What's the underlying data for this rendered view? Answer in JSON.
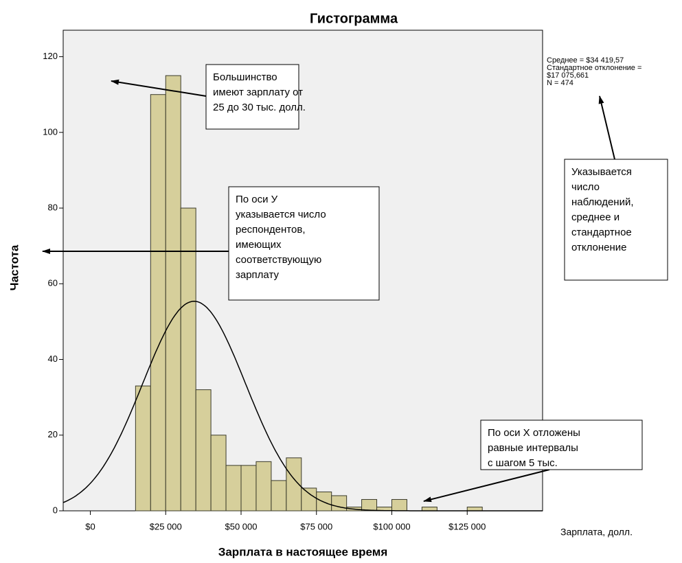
{
  "chart_data": {
    "type": "histogram",
    "title": "Гистограмма",
    "x_label": "Зарплата в настоящее время",
    "y_label": "Частота",
    "x_note": "Зарплата, долл.",
    "bins": [
      15000,
      20000,
      25000,
      30000,
      35000,
      40000,
      45000,
      50000,
      55000,
      60000,
      65000,
      70000,
      75000,
      80000,
      85000,
      90000,
      95000,
      100000,
      105000,
      110000,
      115000,
      120000,
      125000,
      130000
    ],
    "values": [
      33,
      110,
      115,
      80,
      32,
      20,
      12,
      12,
      13,
      8,
      14,
      6,
      5,
      4,
      1,
      3,
      1,
      3,
      0,
      1,
      0,
      0,
      1
    ],
    "color": "#d6cf9b",
    "xlim": [
      -9000,
      150000
    ],
    "xticks": [
      {
        "value": 0,
        "label": "$0"
      },
      {
        "value": 25000,
        "label": "$25 000"
      },
      {
        "value": 50000,
        "label": "$50 000"
      },
      {
        "value": 75000,
        "label": "$75 000"
      },
      {
        "value": 100000,
        "label": "$100 000"
      },
      {
        "value": 125000,
        "label": "$125 000"
      }
    ],
    "ylim": [
      0,
      127
    ],
    "yticks": [
      0,
      20,
      40,
      60,
      80,
      100,
      120
    ],
    "normal_curve": {
      "mean": 34419.57,
      "sd": 17075.661,
      "n": 474
    },
    "stats_lines": [
      "Среднее = $34 419,57",
      "Стандартное отклонение =",
      "$17 075,661",
      "N = 474"
    ],
    "annotations": [
      {
        "lines": [
          "Большинство",
          "имеют зарплату от",
          "25 до 30 тыс. долл."
        ]
      },
      {
        "lines": [
          "По оси У",
          "указывается число",
          "респондентов,",
          "имеющих",
          "соответствующую",
          "зарплату"
        ]
      },
      {
        "lines": [
          "Указывается",
          "число",
          "наблюдений,",
          "среднее и",
          "стандартное",
          "отклонение"
        ]
      },
      {
        "lines": [
          "По оси X отложены",
          "равные интервалы",
          "с шагом 5 тыс."
        ]
      }
    ]
  }
}
